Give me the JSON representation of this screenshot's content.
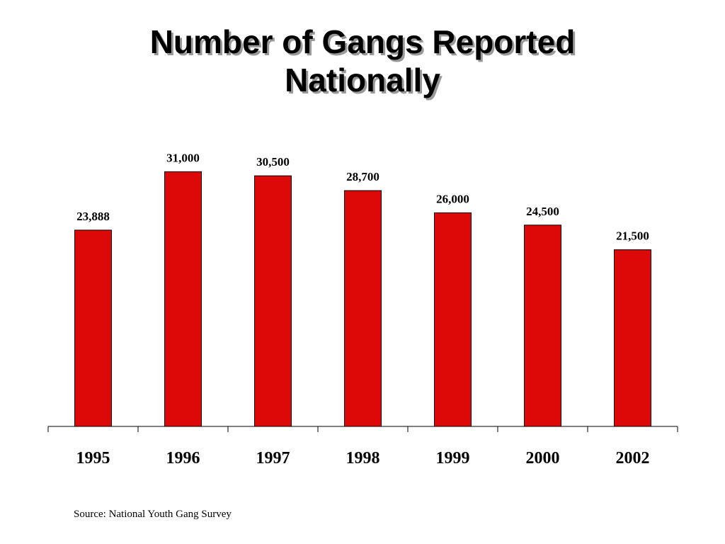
{
  "chart_data": {
    "type": "bar",
    "title": "Number of Gangs Reported Nationally",
    "categories": [
      "1995",
      "1996",
      "1997",
      "1998",
      "1999",
      "2000",
      "2002"
    ],
    "values": [
      23888,
      31000,
      30500,
      28700,
      26000,
      24500,
      21500
    ],
    "value_labels": [
      "23,888",
      "31,000",
      "30,500",
      "28,700",
      "26,000",
      "24,500",
      "21,500"
    ],
    "color": "#dd0808",
    "ylim": [
      0,
      35000
    ],
    "source": "Source: National Youth Gang Survey"
  }
}
